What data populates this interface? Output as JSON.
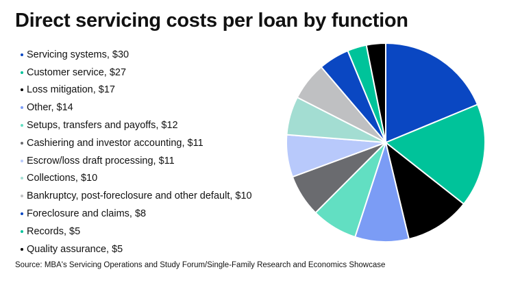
{
  "title": "Direct servicing costs per loan by function",
  "source": "Source: MBA's Servicing Operations and Study Forum/Single-Family Research and Economics Showcase",
  "chart_data": {
    "type": "pie",
    "title": "Direct servicing costs per loan by function",
    "legend_position": "left",
    "slices": [
      {
        "label": "Servicing systems, $30",
        "name": "Servicing systems",
        "value": 30,
        "color": "#0A47C2"
      },
      {
        "label": "Customer service, $27",
        "name": "Customer service",
        "value": 27,
        "color": "#00C39A"
      },
      {
        "label": "Loss mitigation, $17",
        "name": "Loss mitigation",
        "value": 17,
        "color": "#000000"
      },
      {
        "label": "Other, $14",
        "name": "Other",
        "value": 14,
        "color": "#7B9CF5"
      },
      {
        "label": "Setups, transfers and payoffs, $12",
        "name": "Setups, transfers and payoffs",
        "value": 12,
        "color": "#62DFC2"
      },
      {
        "label": "Cashiering and investor accounting, $11",
        "name": "Cashiering and investor accounting",
        "value": 11,
        "color": "#6A6B6F"
      },
      {
        "label": "Escrow/loss draft processing, $11",
        "name": "Escrow/loss draft processing",
        "value": 11,
        "color": "#B8C9FB"
      },
      {
        "label": "Collections, $10",
        "name": "Collections",
        "value": 10,
        "color": "#A3DDD2"
      },
      {
        "label": "Bankruptcy, post-foreclosure and other default, $10",
        "name": "Bankruptcy, post-foreclosure and other default",
        "value": 10,
        "color": "#BFC0C2"
      },
      {
        "label": "Foreclosure and claims, $8",
        "name": "Foreclosure and claims",
        "value": 8,
        "color": "#0A47C2"
      },
      {
        "label": "Records, $5",
        "name": "Records",
        "value": 5,
        "color": "#00C39A"
      },
      {
        "label": "Quality assurance, $5",
        "name": "Quality assurance",
        "value": 5,
        "color": "#000000"
      }
    ]
  }
}
